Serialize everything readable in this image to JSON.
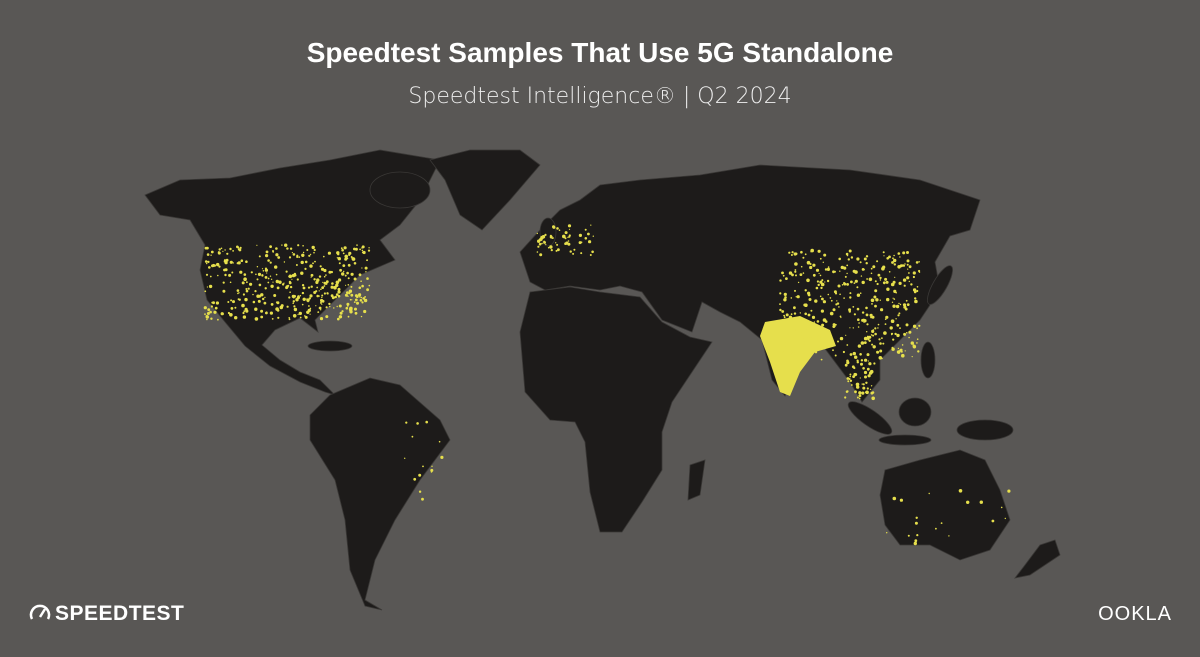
{
  "header": {
    "title": "Speedtest Samples That Use 5G Standalone",
    "subtitle": "Speedtest Intelligence® | Q2 2024"
  },
  "footer": {
    "left_logo": "SPEEDTEST",
    "right_logo": "OOKLA"
  }
}
